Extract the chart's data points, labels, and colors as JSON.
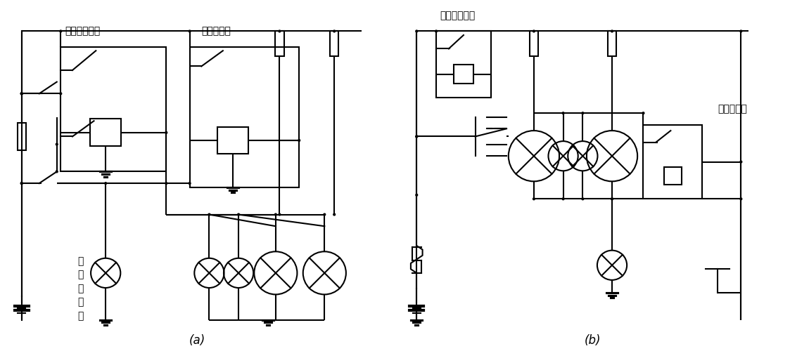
{
  "title_a": "(a)",
  "title_b": "(b)",
  "label_a_relay1": "前照灯继电器",
  "label_a_relay2": "变光继电器",
  "label_a_lamp_lines": [
    "远",
    "光",
    "指",
    "示",
    "灯"
  ],
  "label_b_relay1": "前照灯继电器",
  "label_b_relay2": "变光继电器",
  "bg_color": "#ffffff",
  "line_color": "#000000",
  "lw": 1.5
}
